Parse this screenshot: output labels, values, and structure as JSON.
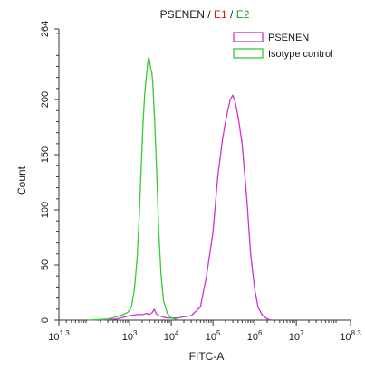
{
  "chart_data": {
    "type": "line",
    "title_parts": [
      {
        "text": "PSENEN",
        "color": "#1a1a1a"
      },
      {
        "text": " / ",
        "color": "#1a1a1a"
      },
      {
        "text": "E1",
        "color": "#e01010"
      },
      {
        "text": " / ",
        "color": "#1a1a1a"
      },
      {
        "text": "E2",
        "color": "#1a9a1a"
      }
    ],
    "xlabel": "FITC-A",
    "ylabel": "Count",
    "x_scale": "log",
    "xlim": [
      20,
      200000000
    ],
    "ylim": [
      0,
      264
    ],
    "x_ticks": [
      {
        "base": "10",
        "exp": "1.3",
        "value": 20
      },
      {
        "base": "10",
        "exp": "3",
        "value": 1000
      },
      {
        "base": "10",
        "exp": "4",
        "value": 10000
      },
      {
        "base": "10",
        "exp": "5",
        "value": 100000
      },
      {
        "base": "10",
        "exp": "6",
        "value": 1000000
      },
      {
        "base": "10",
        "exp": "7",
        "value": 10000000
      },
      {
        "base": "10",
        "exp": "8.3",
        "value": 200000000
      }
    ],
    "y_ticks": [
      "0",
      "50",
      "100",
      "150",
      "200",
      "264"
    ],
    "y_tick_values": [
      0,
      50,
      100,
      150,
      200,
      264
    ],
    "legend_position": "top-right",
    "grid": false,
    "series": [
      {
        "name": "PSENEN",
        "color": "#cc33cc",
        "points": [
          [
            200,
            0
          ],
          [
            500,
            1
          ],
          [
            800,
            3
          ],
          [
            1000,
            4
          ],
          [
            1500,
            5
          ],
          [
            2000,
            5
          ],
          [
            2500,
            6
          ],
          [
            3000,
            5
          ],
          [
            3500,
            7
          ],
          [
            3900,
            10
          ],
          [
            4300,
            6
          ],
          [
            5000,
            4
          ],
          [
            6000,
            3
          ],
          [
            8000,
            2
          ],
          [
            10000,
            2
          ],
          [
            15000,
            2
          ],
          [
            20000,
            3
          ],
          [
            30000,
            4
          ],
          [
            50000,
            12
          ],
          [
            70000,
            40
          ],
          [
            100000,
            80
          ],
          [
            130000,
            130
          ],
          [
            170000,
            165
          ],
          [
            220000,
            188
          ],
          [
            260000,
            200
          ],
          [
            300000,
            204
          ],
          [
            340000,
            198
          ],
          [
            400000,
            185
          ],
          [
            500000,
            160
          ],
          [
            650000,
            110
          ],
          [
            800000,
            60
          ],
          [
            1000000,
            28
          ],
          [
            1200000,
            12
          ],
          [
            1500000,
            5
          ],
          [
            2000000,
            1
          ],
          [
            2500000,
            0
          ]
        ]
      },
      {
        "name": "Isotype control",
        "color": "#33cc33",
        "points": [
          [
            100,
            0
          ],
          [
            300,
            1
          ],
          [
            500,
            3
          ],
          [
            700,
            5
          ],
          [
            900,
            7
          ],
          [
            1100,
            12
          ],
          [
            1300,
            28
          ],
          [
            1500,
            55
          ],
          [
            1700,
            95
          ],
          [
            1900,
            140
          ],
          [
            2100,
            180
          ],
          [
            2300,
            205
          ],
          [
            2500,
            220
          ],
          [
            2700,
            232
          ],
          [
            2850,
            238
          ],
          [
            3000,
            236
          ],
          [
            3200,
            228
          ],
          [
            3400,
            225
          ],
          [
            3600,
            215
          ],
          [
            4000,
            180
          ],
          [
            4500,
            130
          ],
          [
            5000,
            80
          ],
          [
            5700,
            40
          ],
          [
            6500,
            18
          ],
          [
            8000,
            6
          ],
          [
            10000,
            2
          ],
          [
            15000,
            0
          ]
        ]
      }
    ]
  }
}
